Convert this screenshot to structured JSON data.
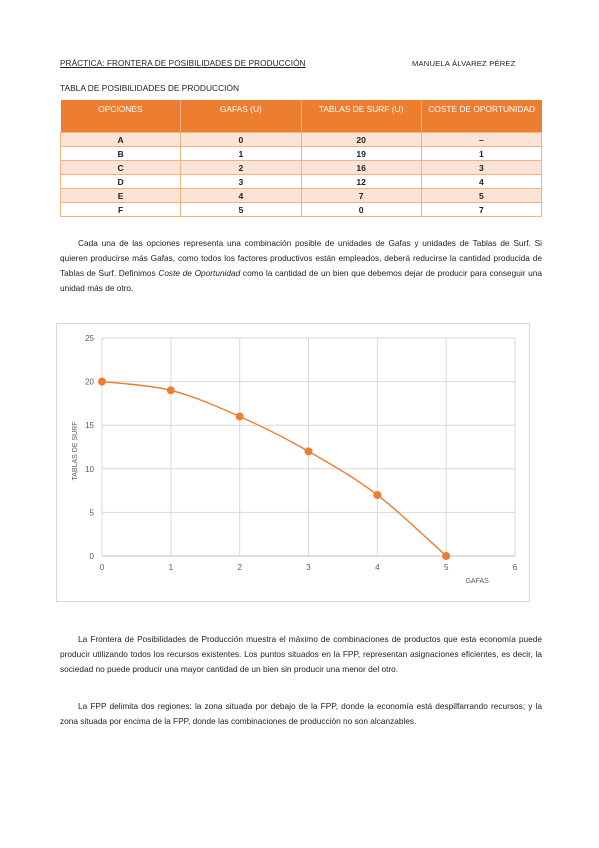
{
  "header": {
    "title": "PRÁCTICA: FRONTERA DE POSIBILIDADES DE PRODUCCIÓN",
    "author": "MANUELA ÁLVAREZ PÉREZ"
  },
  "table": {
    "caption": "TABLA DE POSIBILIDADES DE PRODUCCIÓN",
    "columns": [
      "OPCIONES",
      "GAFAS (U)",
      "TABLAS DE SURF (U)",
      "COSTE DE OPORTUNIDAD"
    ],
    "rows": [
      [
        "A",
        "0",
        "20",
        "–"
      ],
      [
        "B",
        "1",
        "19",
        "1"
      ],
      [
        "C",
        "2",
        "16",
        "3"
      ],
      [
        "D",
        "3",
        "12",
        "4"
      ],
      [
        "E",
        "4",
        "7",
        "5"
      ],
      [
        "F",
        "5",
        "0",
        "7"
      ]
    ]
  },
  "paragraph1": {
    "before_em": "Cada una de las opciones representa una combinación posible de unidades de Gafas y unidades de Tablas de Surf. Si quieren producirse más Gafas, como todos los factores productivos están empleados, deberá reducirse la cantidad producida de Tablas de Surf. Definimos ",
    "em": "Coste de Oportunidad",
    "after_em": " como la cantidad de un bien que debemos dejar de producir para conseguir una unidad más de otro."
  },
  "chart_data": {
    "type": "scatter",
    "title": "",
    "xlabel": "GAFAS",
    "ylabel": "TABLAS DE SURF",
    "x": [
      0,
      1,
      2,
      3,
      4,
      5
    ],
    "y": [
      20,
      19,
      16,
      12,
      7,
      0
    ],
    "xlim": [
      0,
      6
    ],
    "ylim": [
      0,
      25
    ],
    "xticks": [
      "0",
      "1",
      "2",
      "3",
      "4",
      "5",
      "6"
    ],
    "yticks": [
      "0",
      "5",
      "10",
      "15",
      "20",
      "25"
    ],
    "grid": true,
    "smooth_line": true,
    "color": "#ed7d31"
  },
  "paragraph2": "La Frontera de Posibilidades de Producción muestra el máximo de combinaciones de productos que esta economía puede producir utilizando todos los recursos existentes. Los puntos situados en la FPP, representan asignaciones eficientes, es decir, la sociedad no puede producir una mayor cantidad de un bien sin producir una menor del otro.",
  "paragraph3": "La FPP delimita dos regiones: la zona situada por debajo de la FPP, donde la economía está despilfarrando recursos; y la zona situada por encima de la FPP, donde las combinaciones de producción no son alcanzables."
}
